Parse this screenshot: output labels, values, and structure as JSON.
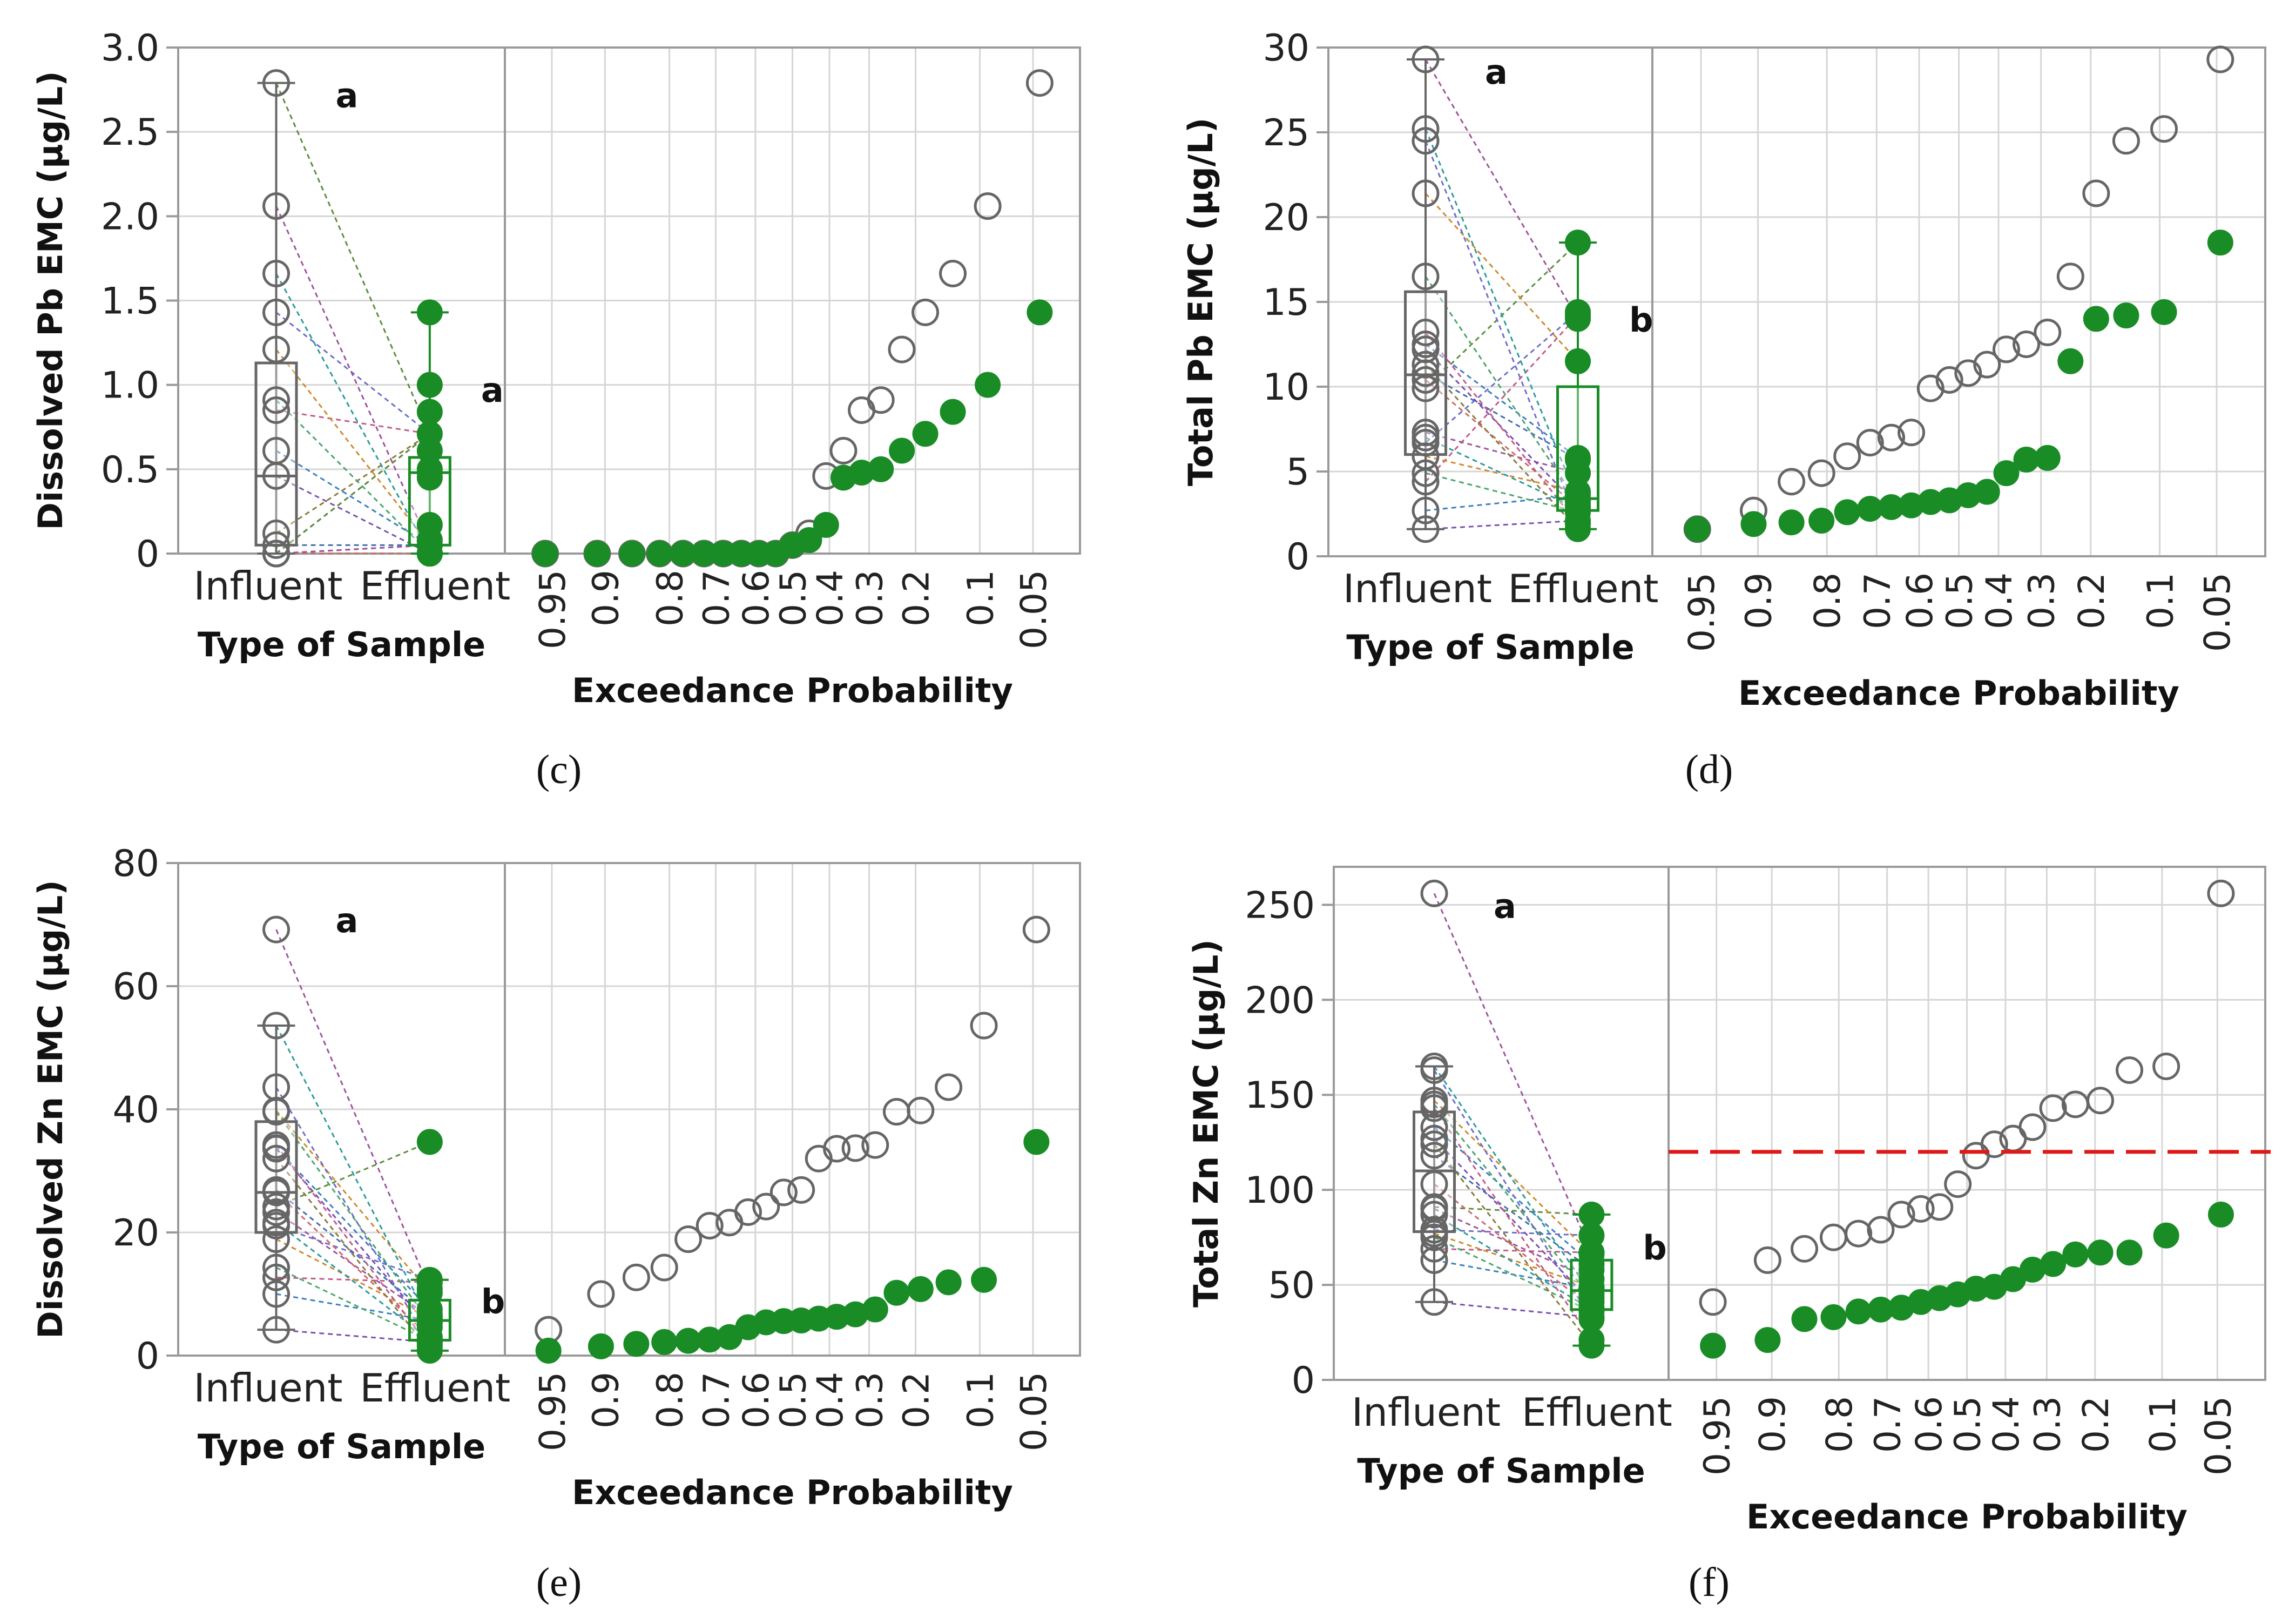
{
  "style": {
    "influent_color": "#666666",
    "effluent_color": "#1a8c26",
    "grid_color": "#d6d6d6",
    "frame_color": "#9a9a9a",
    "threshold_color": "#e01818"
  },
  "chart_data": [
    {
      "id": "c",
      "type": "scatter",
      "caption": "(c)",
      "ylabel": "Dissolved Pb EMC (µg/L)",
      "ylim": [
        0,
        3.0
      ],
      "yticks": [
        0,
        0.5,
        1.0,
        1.5,
        2.0,
        2.5,
        3.0
      ],
      "ytick_labels": [
        "0",
        "0.5",
        "1.0",
        "1.5",
        "2.0",
        "2.5",
        "3.0"
      ],
      "left_xlabel": "Type of Sample",
      "categories": [
        "Influent",
        "Effluent"
      ],
      "right_xlabel": "Exceedance Probability",
      "xticks": [
        0.95,
        0.9,
        0.8,
        0.7,
        0.6,
        0.5,
        0.4,
        0.3,
        0.2,
        0.1,
        0.05
      ],
      "xtick_labels": [
        "0.95",
        "0.9",
        "0.8",
        "0.7",
        "0.6",
        "0.5",
        "0.4",
        "0.3",
        "0.2",
        "0.1",
        "0.05"
      ],
      "series": [
        {
          "name": "Influent",
          "values": [
            0.0,
            0.0,
            0.0,
            0.0,
            0.0,
            0.0,
            0.0,
            0.0,
            0.0,
            0.0,
            0.05,
            0.12,
            0.46,
            0.61,
            0.85,
            0.91,
            1.21,
            1.43,
            1.66,
            2.06,
            2.79
          ]
        },
        {
          "name": "Effluent",
          "values": [
            0.0,
            0.0,
            0.0,
            0.0,
            0.0,
            0.0,
            0.0,
            0.0,
            0.0,
            0.0,
            0.05,
            0.08,
            0.17,
            0.45,
            0.48,
            0.5,
            0.61,
            0.71,
            0.84,
            1.0,
            1.43
          ]
        }
      ],
      "box": {
        "influent": {
          "q1": 0.05,
          "median": 0.46,
          "q3": 1.13,
          "low": 0.0,
          "high": 2.79
        },
        "effluent": {
          "q1": 0.05,
          "median": 0.48,
          "q3": 0.57,
          "low": 0.0,
          "high": 1.43
        }
      },
      "letters": {
        "influent": "a",
        "effluent": "a"
      }
    },
    {
      "id": "d",
      "type": "scatter",
      "caption": "(d)",
      "ylabel": "Total Pb EMC (µg/L)",
      "ylim": [
        0,
        30
      ],
      "yticks": [
        0,
        5,
        10,
        15,
        20,
        25,
        30
      ],
      "ytick_labels": [
        "0",
        "5",
        "10",
        "15",
        "20",
        "25",
        "30"
      ],
      "left_xlabel": "Type of Sample",
      "categories": [
        "Influent",
        "Effluent"
      ],
      "right_xlabel": "Exceedance Probability",
      "xticks": [
        0.95,
        0.9,
        0.8,
        0.7,
        0.6,
        0.5,
        0.4,
        0.3,
        0.2,
        0.1,
        0.05
      ],
      "xtick_labels": [
        "0.95",
        "0.9",
        "0.8",
        "0.7",
        "0.6",
        "0.5",
        "0.4",
        "0.3",
        "0.2",
        "0.1",
        "0.05"
      ],
      "series": [
        {
          "name": "Influent",
          "values": [
            1.6,
            2.7,
            4.4,
            4.9,
            5.9,
            6.7,
            7.0,
            7.3,
            9.9,
            10.4,
            10.8,
            11.3,
            12.2,
            12.5,
            13.2,
            16.5,
            21.4,
            24.5,
            25.2,
            29.3
          ]
        },
        {
          "name": "Effluent",
          "values": [
            1.6,
            1.9,
            2.0,
            2.1,
            2.6,
            2.8,
            2.9,
            3.0,
            3.2,
            3.3,
            3.6,
            3.8,
            4.9,
            5.7,
            5.8,
            11.5,
            14.0,
            14.2,
            14.4,
            18.5
          ]
        }
      ],
      "box": {
        "influent": {
          "q1": 6.0,
          "median": 10.7,
          "q3": 15.6,
          "low": 1.6,
          "high": 29.3
        },
        "effluent": {
          "q1": 2.7,
          "median": 3.4,
          "q3": 10.0,
          "low": 1.6,
          "high": 18.5
        }
      },
      "letters": {
        "influent": "a",
        "effluent": "b"
      }
    },
    {
      "id": "e",
      "type": "scatter",
      "caption": "(e)",
      "ylabel": "Dissolved Zn EMC (µg/L)",
      "ylim": [
        0,
        80
      ],
      "yticks": [
        0,
        20,
        40,
        60,
        80
      ],
      "ytick_labels": [
        "0",
        "20",
        "40",
        "60",
        "80"
      ],
      "left_xlabel": "Type of Sample",
      "categories": [
        "Influent",
        "Effluent"
      ],
      "right_xlabel": "Exceedance Probability",
      "xticks": [
        0.95,
        0.9,
        0.8,
        0.7,
        0.6,
        0.5,
        0.4,
        0.3,
        0.2,
        0.1,
        0.05
      ],
      "xtick_labels": [
        "0.95",
        "0.9",
        "0.8",
        "0.7",
        "0.6",
        "0.5",
        "0.4",
        "0.3",
        "0.2",
        "0.1",
        "0.05"
      ],
      "series": [
        {
          "name": "Influent",
          "values": [
            4.2,
            10.0,
            12.7,
            14.3,
            18.9,
            21.1,
            21.6,
            23.3,
            24.2,
            26.5,
            26.9,
            32.0,
            33.6,
            33.7,
            34.2,
            39.6,
            39.8,
            43.6,
            53.6,
            69.2
          ]
        },
        {
          "name": "Effluent",
          "values": [
            0.8,
            1.5,
            1.9,
            2.2,
            2.4,
            2.6,
            3.0,
            4.6,
            5.4,
            5.6,
            5.7,
            6.0,
            6.3,
            6.7,
            7.5,
            10.2,
            10.8,
            11.9,
            12.3,
            34.7
          ]
        }
      ],
      "box": {
        "influent": {
          "q1": 20.0,
          "median": 26.5,
          "q3": 38.0,
          "low": 4.2,
          "high": 53.6
        },
        "effluent": {
          "q1": 2.5,
          "median": 5.7,
          "q3": 9.0,
          "low": 0.8,
          "high": 12.3
        }
      },
      "letters": {
        "influent": "a",
        "effluent": "b"
      }
    },
    {
      "id": "f",
      "type": "scatter",
      "caption": "(f)",
      "ylabel": "Total Zn EMC (µg/L)",
      "ylim": [
        0,
        270
      ],
      "yticks": [
        0,
        50,
        100,
        150,
        200,
        250
      ],
      "ytick_labels": [
        "0",
        "50",
        "100",
        "150",
        "200",
        "250"
      ],
      "left_xlabel": "Type of Sample",
      "categories": [
        "Influent",
        "Effluent"
      ],
      "right_xlabel": "Exceedance Probability",
      "xticks": [
        0.95,
        0.9,
        0.8,
        0.7,
        0.6,
        0.5,
        0.4,
        0.3,
        0.2,
        0.1,
        0.05
      ],
      "xtick_labels": [
        "0.95",
        "0.9",
        "0.8",
        "0.7",
        "0.6",
        "0.5",
        "0.4",
        "0.3",
        "0.2",
        "0.1",
        "0.05"
      ],
      "threshold": 120,
      "series": [
        {
          "name": "Influent",
          "values": [
            41,
            63,
            69,
            75,
            77,
            79,
            87,
            90,
            91,
            103,
            118,
            124,
            127,
            133,
            143,
            145,
            147,
            163,
            165,
            256
          ]
        },
        {
          "name": "Effluent",
          "values": [
            18,
            21,
            32,
            33,
            36,
            37,
            38,
            41,
            43,
            45,
            48,
            49,
            53,
            58,
            61,
            66,
            67,
            67,
            76,
            87
          ]
        }
      ],
      "box": {
        "influent": {
          "q1": 78,
          "median": 110,
          "q3": 141,
          "low": 41,
          "high": 165
        },
        "effluent": {
          "q1": 37,
          "median": 47,
          "q3": 63,
          "low": 18,
          "high": 87
        }
      },
      "letters": {
        "influent": "a",
        "effluent": "b"
      }
    }
  ]
}
